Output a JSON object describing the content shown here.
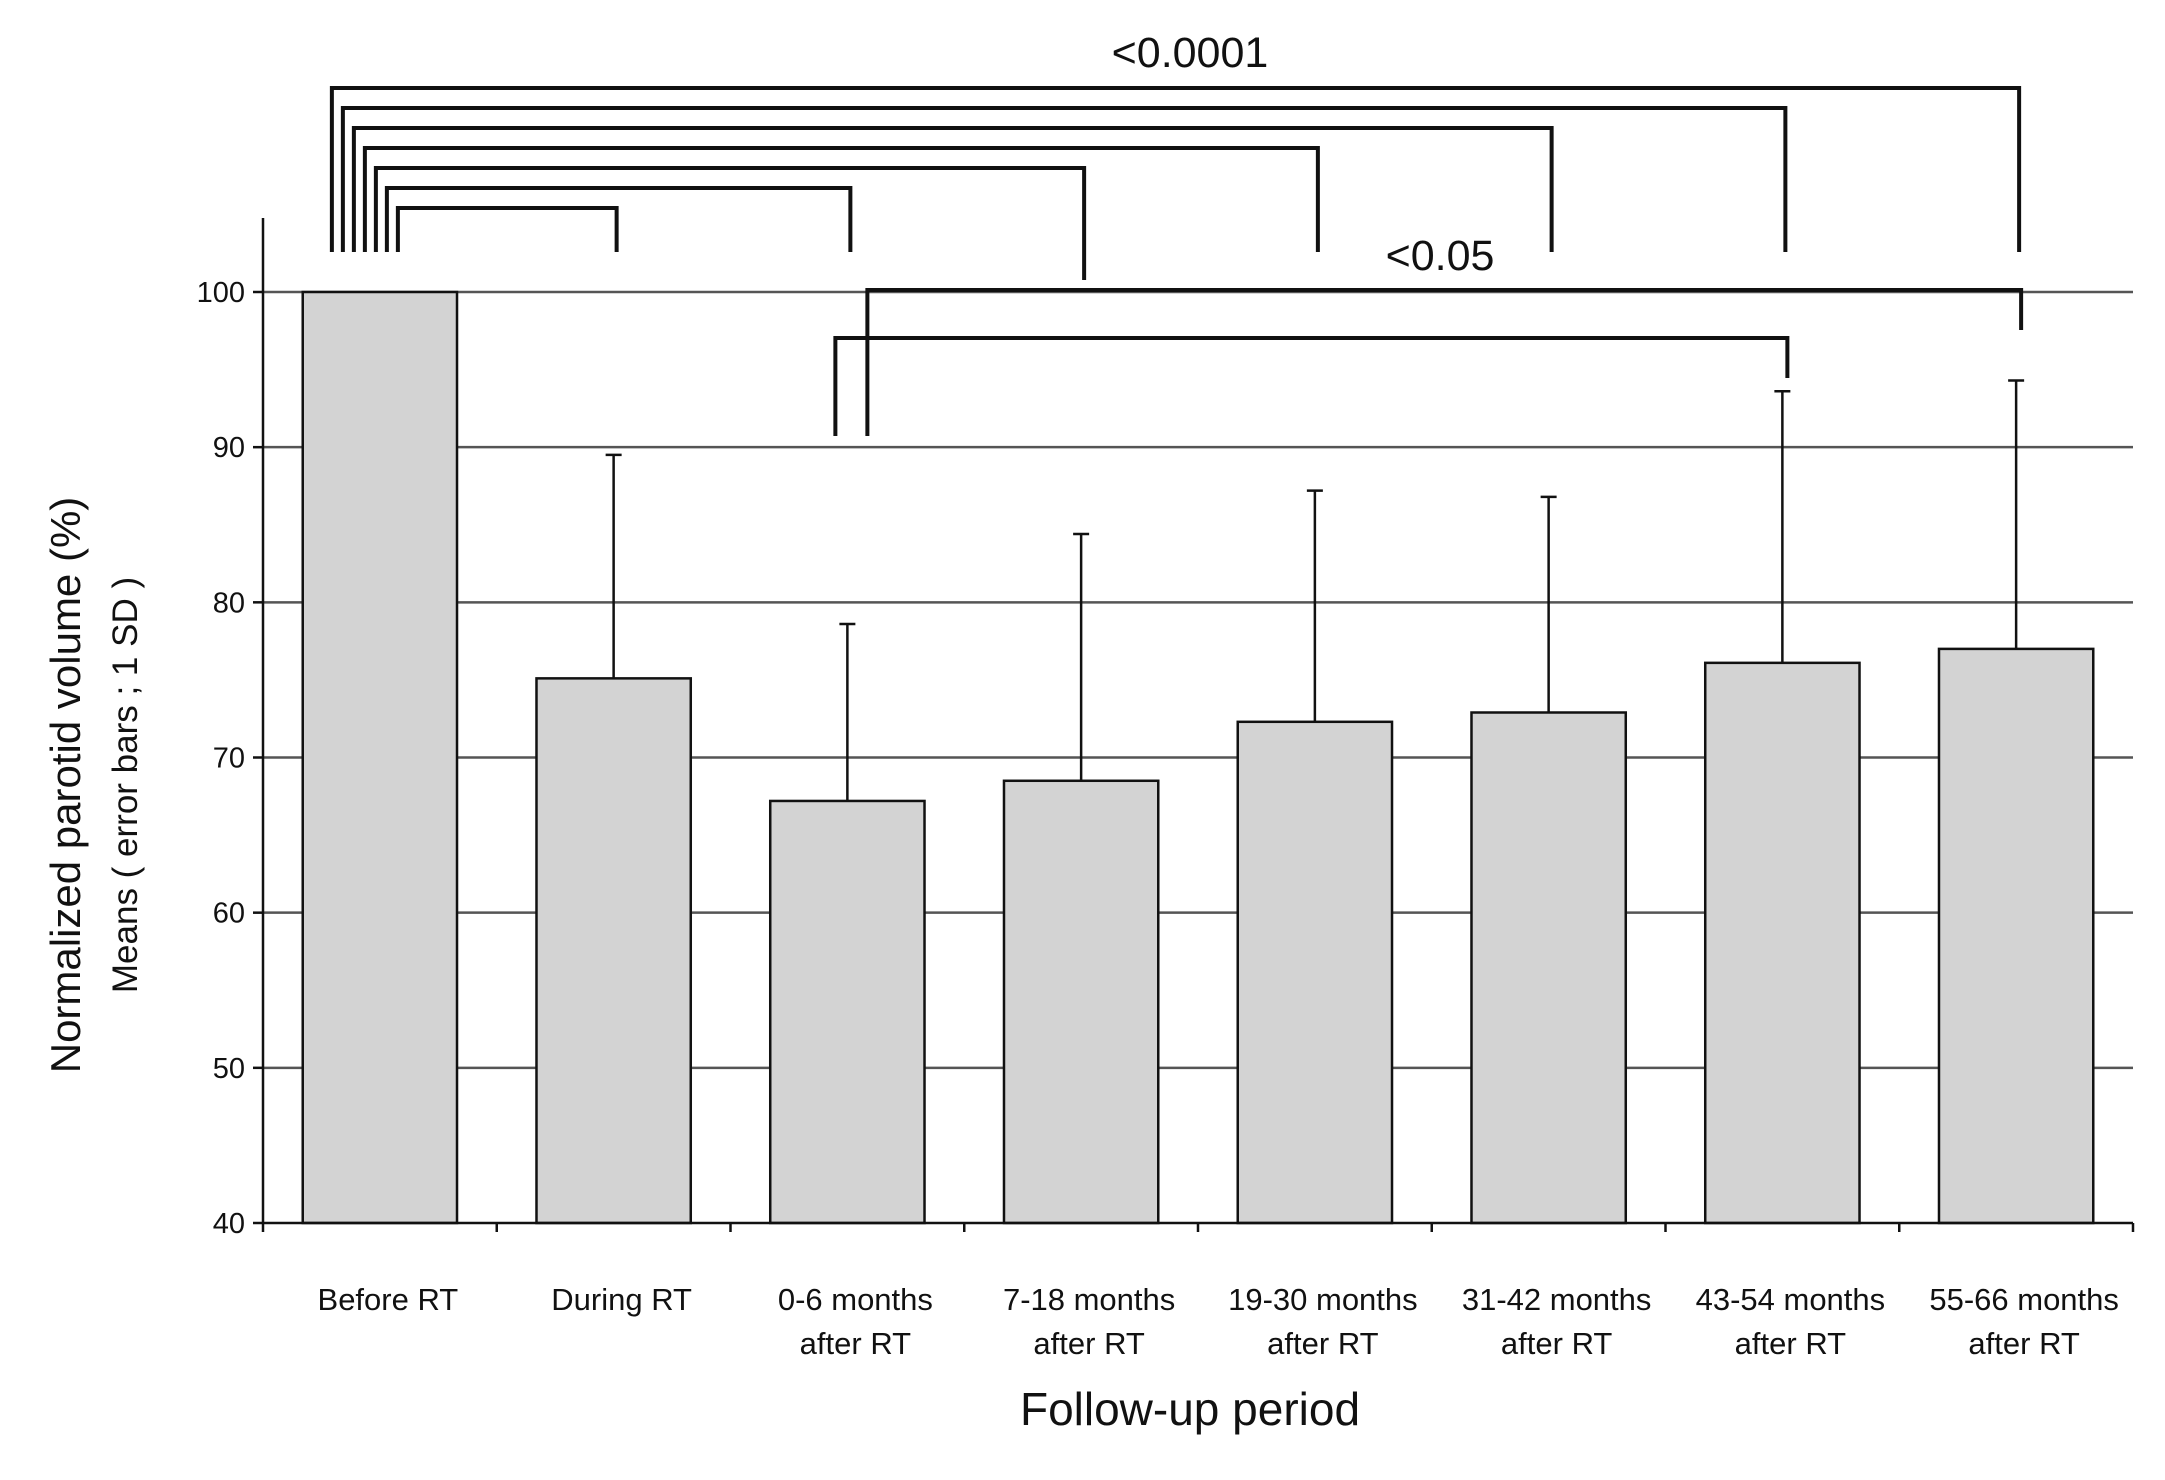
{
  "chart_data": {
    "type": "bar",
    "xlabel": "Follow-up period",
    "ylabel": [
      "Normalized  parotid  volume (%)",
      "Means ( error bars ; 1 SD )"
    ],
    "ylim": [
      40,
      100
    ],
    "yticks": [
      40,
      50,
      60,
      70,
      80,
      90,
      100
    ],
    "grid": true,
    "categories": [
      [
        "Before RT"
      ],
      [
        "During RT"
      ],
      [
        "0-6 months",
        "after RT"
      ],
      [
        "7-18 months",
        "after RT"
      ],
      [
        "19-30 months",
        "after RT"
      ],
      [
        "31-42 months",
        "after RT"
      ],
      [
        "43-54 months",
        "after RT"
      ],
      [
        "55-66 months",
        "after RT"
      ]
    ],
    "values": [
      100,
      75.1,
      67.2,
      68.5,
      72.3,
      72.9,
      76.1,
      77.0
    ],
    "error_upper": [
      100,
      89.5,
      78.6,
      84.4,
      87.2,
      86.8,
      93.6,
      94.3
    ],
    "significance": [
      {
        "label": "<0.0001",
        "pairs": [
          [
            0,
            1
          ],
          [
            0,
            2
          ],
          [
            0,
            3
          ],
          [
            0,
            4
          ],
          [
            0,
            5
          ],
          [
            0,
            6
          ],
          [
            0,
            7
          ]
        ]
      },
      {
        "label": "<0.05",
        "pairs": [
          [
            2,
            6
          ],
          [
            2,
            7
          ]
        ]
      }
    ],
    "colors": {
      "bar": "#d3d3d3",
      "stroke": "#111111",
      "grid": "#555555"
    }
  }
}
